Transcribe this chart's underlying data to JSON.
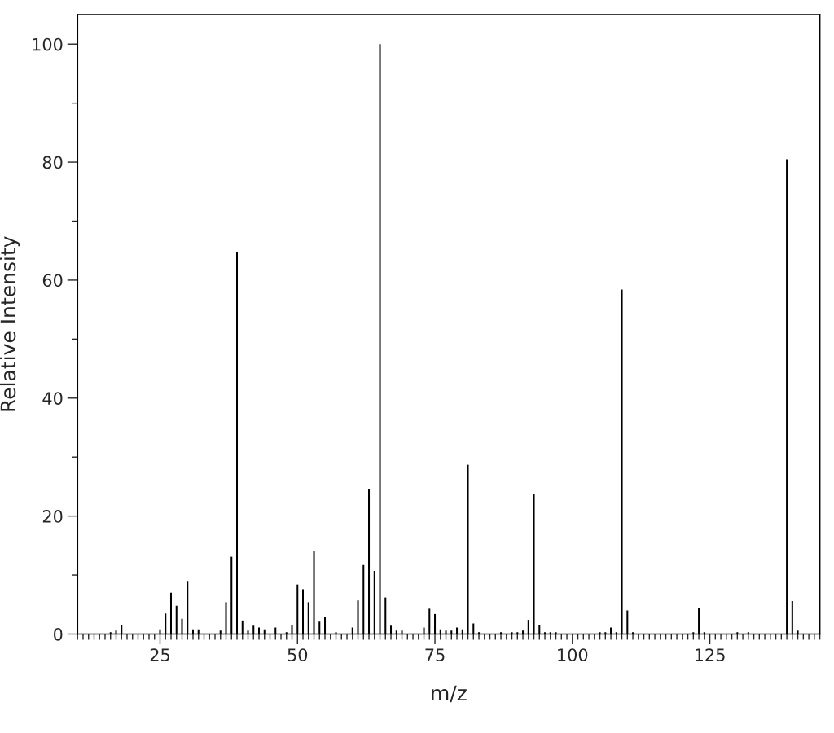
{
  "chart_data": {
    "type": "bar",
    "xlabel": "m/z",
    "ylabel": "Relative Intensity",
    "x": [
      16,
      17,
      18,
      25,
      26,
      27,
      28,
      29,
      30,
      31,
      32,
      36,
      37,
      38,
      39,
      40,
      41,
      42,
      43,
      44,
      46,
      48,
      49,
      50,
      51,
      52,
      53,
      54,
      55,
      57,
      60,
      61,
      62,
      63,
      64,
      65,
      66,
      67,
      68,
      69,
      73,
      74,
      75,
      76,
      77,
      78,
      79,
      80,
      81,
      82,
      83,
      87,
      89,
      90,
      91,
      92,
      93,
      94,
      95,
      96,
      97,
      105,
      106,
      107,
      108,
      109,
      110,
      111,
      122,
      123,
      124,
      130,
      132,
      139,
      140,
      141
    ],
    "values": [
      0.3,
      0.6,
      1.6,
      0.8,
      3.5,
      7.0,
      4.8,
      2.6,
      9.0,
      0.8,
      0.8,
      0.6,
      5.4,
      13.1,
      64.7,
      2.3,
      0.6,
      1.4,
      1.1,
      0.8,
      1.1,
      0.3,
      1.6,
      8.4,
      7.6,
      5.4,
      14.1,
      2.1,
      2.9,
      0.3,
      1.1,
      5.7,
      11.7,
      24.5,
      10.7,
      100,
      6.2,
      1.4,
      0.6,
      0.6,
      1.1,
      4.3,
      3.4,
      0.8,
      0.6,
      0.6,
      1.1,
      0.8,
      28.7,
      1.8,
      0.3,
      0.3,
      0.3,
      0.3,
      0.6,
      2.4,
      23.7,
      1.6,
      0.3,
      0.3,
      0.3,
      0.3,
      0.3,
      1.1,
      0.3,
      58.4,
      4.0,
      0.3,
      0.3,
      4.5,
      0.3,
      0.3,
      0.3,
      80.5,
      5.6,
      0.6
    ],
    "color": "#000000",
    "xlim": [
      10,
      145
    ],
    "xticks": [
      25,
      50,
      75,
      100,
      125
    ],
    "ylim": [
      0,
      105
    ],
    "yticks": [
      0,
      20,
      40,
      60,
      80,
      100
    ],
    "grid": false
  }
}
